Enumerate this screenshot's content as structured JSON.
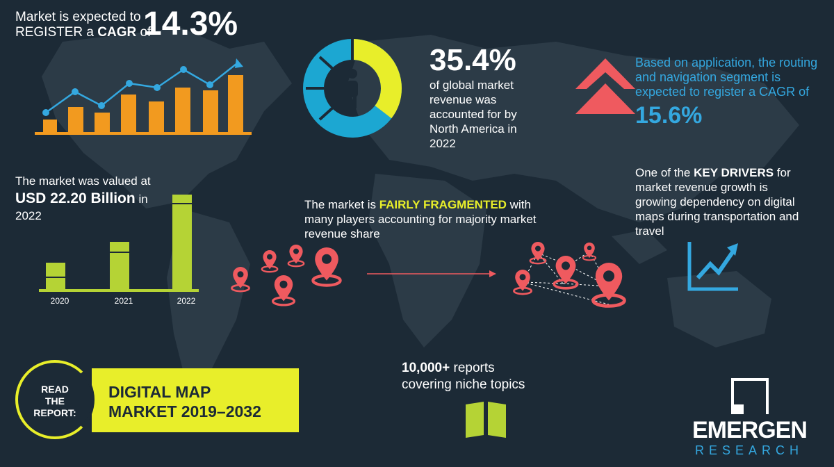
{
  "cagr": {
    "line1": "Market is expected to",
    "line2_prefix": "REGISTER a ",
    "line2_bold": "CAGR",
    "line2_suffix": " of",
    "value": "14.3%"
  },
  "north_america": {
    "value": "35.4%",
    "line1": "of global market",
    "line2": "revenue was",
    "line3": "accounted for by",
    "line4": "North America in",
    "line5": "2022",
    "share_fraction": 0.354
  },
  "segment": {
    "line1": "Based on application, the routing",
    "line2": "and navigation segment is",
    "line3": "expected to register a CAGR of",
    "value": "15.6%"
  },
  "valuation": {
    "line1": "The market was valued at",
    "usd": "USD  22.20 Billion",
    "in": " in",
    "year": "2022"
  },
  "bar_years": [
    "2020",
    "2021",
    "2022"
  ],
  "fragmented": {
    "prefix": "The market is ",
    "highlight": "FAIRLY FRAGMENTED",
    "suffix": " with",
    "line2": "many players accounting for majority market",
    "line3": "revenue share"
  },
  "drivers": {
    "prefix": "One of the ",
    "bold": "KEY DRIVERS",
    "suffix": " for",
    "line2": "market revenue growth is",
    "line3": "growing dependency on digital",
    "line4": "maps during transportation and",
    "line5": "travel"
  },
  "report": {
    "circle_line1": "READ",
    "circle_line2": "THE",
    "circle_line3": "REPORT:",
    "title_line1": "DIGITAL MAP",
    "title_line2": "MARKET 2019–2032"
  },
  "reports_count": {
    "line1_bold": "10,000+",
    "line1_rest": " reports",
    "line2": "covering niche topics"
  },
  "brand": {
    "name": "EMERGEN",
    "sub": "RESEARCH"
  },
  "colors": {
    "background": "#1c2a36",
    "yellow": "#e8ee2a",
    "orange": "#f29a1f",
    "blue": "#34a8e0",
    "red": "#ef5a5f",
    "green": "#b5d335"
  },
  "icons": [
    "person-icon",
    "location-pin-icon",
    "double-chevron-up-icon",
    "growth-chart-icon",
    "book-icon",
    "emergen-logo-icon"
  ]
}
